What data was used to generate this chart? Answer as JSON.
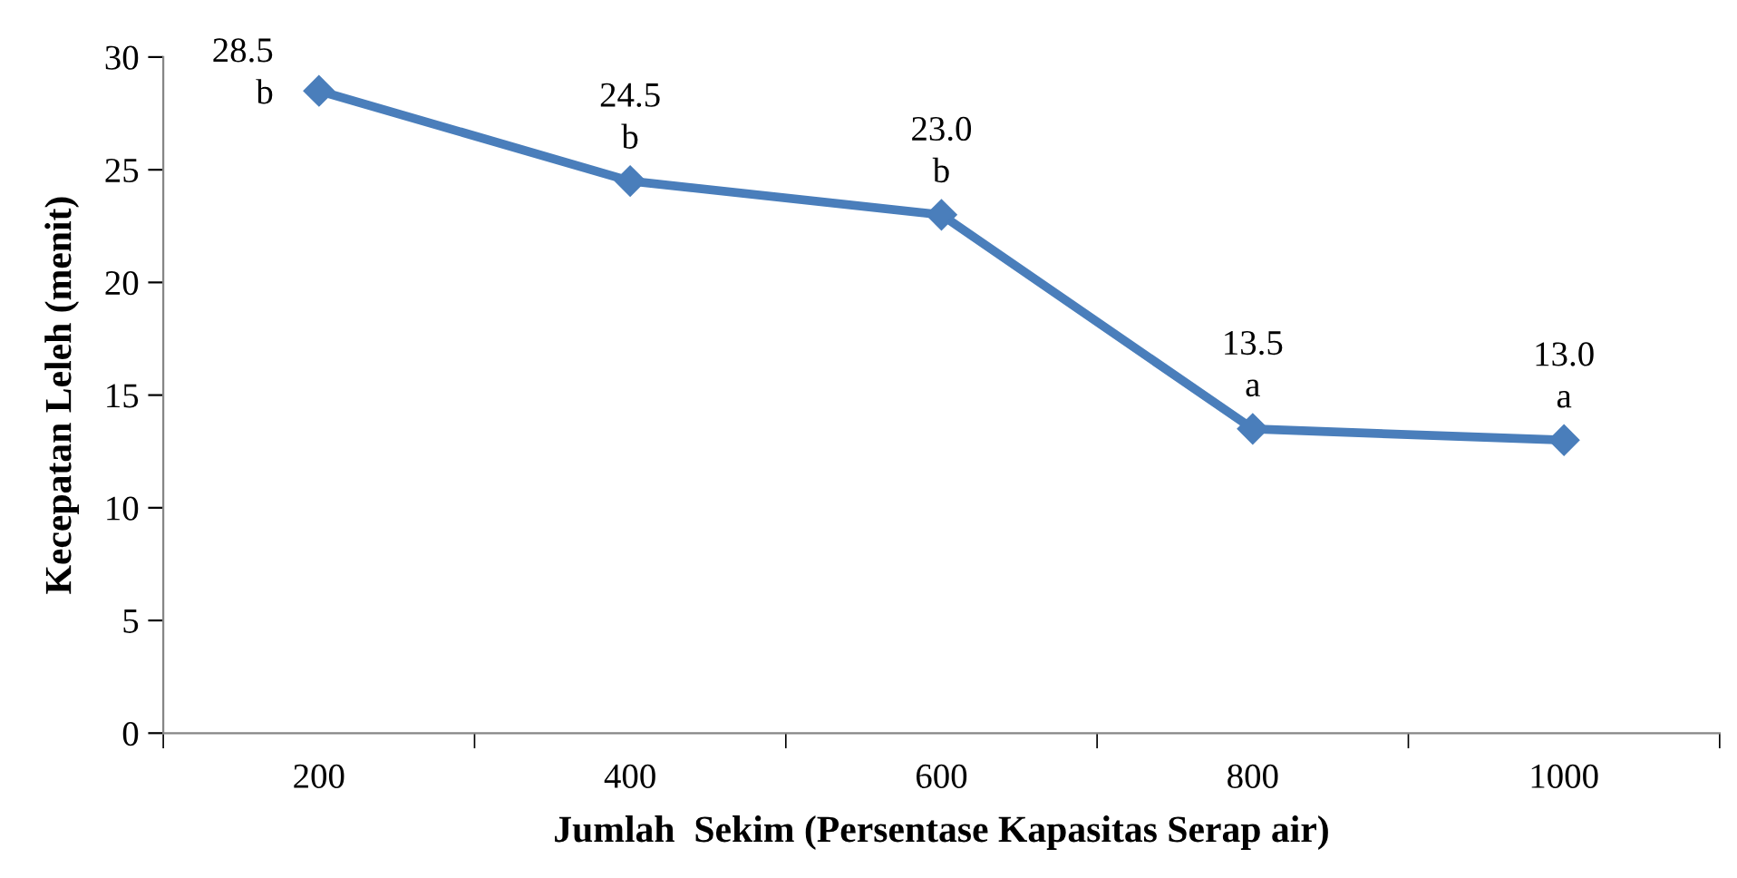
{
  "chart_data": {
    "type": "line",
    "xlabel": "Jumlah  Sekim (Persentase Kapasitas Serap air)",
    "ylabel": "Kecepatan Leleh (menit)",
    "categories": [
      "200",
      "400",
      "600",
      "800",
      "1000"
    ],
    "series": [
      {
        "color": "#4a7ebb",
        "values": [
          28.5,
          24.5,
          23.0,
          13.5,
          13.0
        ],
        "value_labels": [
          "28.5\nb",
          "24.5\nb",
          "23.0\nb",
          "13.5\na",
          "13.0\na"
        ]
      }
    ],
    "ylim": [
      0,
      30
    ],
    "yticks": [
      0,
      5,
      10,
      15,
      20,
      25,
      30
    ],
    "grid": false,
    "legend": false,
    "marker": "diamond",
    "line_style": "solid"
  }
}
